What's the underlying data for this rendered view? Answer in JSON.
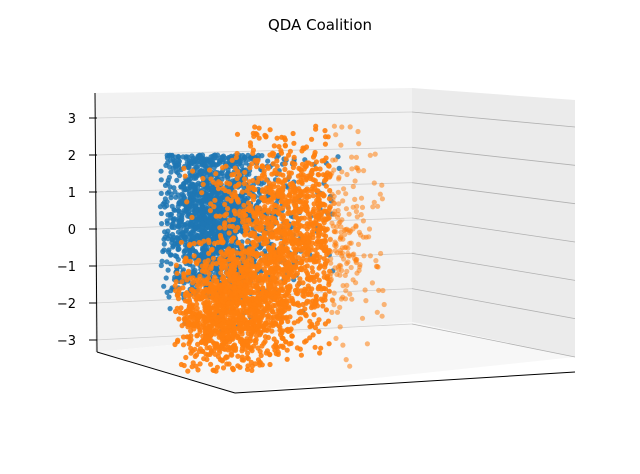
{
  "chart_data": {
    "type": "scatter",
    "title": "QDA Coalition",
    "projection": "3d",
    "grid": true,
    "zticks": [
      3,
      2,
      1,
      0,
      -1,
      -2,
      -3
    ],
    "zlabels": [
      "3",
      "2",
      "1",
      "0",
      "−1",
      "−2",
      "−3"
    ],
    "zlim": [
      -3.4,
      3.7
    ],
    "series": [
      {
        "color": "#1f77b4",
        "approx_points": 4000,
        "y_center": 0.4,
        "y_spread": 1.0,
        "x_range": [
          -2.6,
          0.8
        ]
      },
      {
        "color": "#ff7f0e",
        "approx_points": 4000,
        "y_center": -0.6,
        "y_spread": 1.4,
        "x_range": [
          -1.8,
          3.0
        ]
      }
    ]
  }
}
